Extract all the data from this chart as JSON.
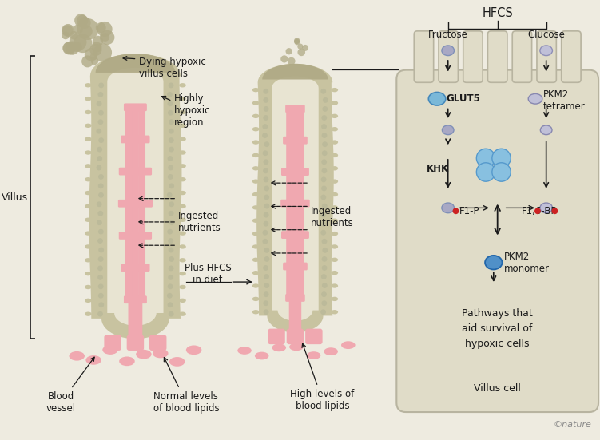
{
  "bg_color": "#eeebe0",
  "villus_outer_color": "#c8c3a0",
  "villus_inner_color": "#e8e4d2",
  "villus_edge_color": "#b8b398",
  "blood_color": "#f0a8b0",
  "hypoxic_color": "#b0aa86",
  "hypoxic_dark": "#989478",
  "cell_bg": "#e0dcc8",
  "cell_edge": "#b8b4a0",
  "arrow_color": "#1a1a1a",
  "text_color": "#1a1a1a",
  "blue_glut5": "#7ab8d8",
  "blue_pkm2": "#5090c8",
  "blue_tetramer": "#88c0e0",
  "gray_circle": "#a8a8c4",
  "gray_light": "#c0c0d8",
  "red_dot": "#cc2222",
  "nature_color": "#888888",
  "labels": {
    "fructose": "Fructose",
    "glucose": "Glucose",
    "hfcs": "HFCS",
    "glut5": "GLUT5",
    "pkm2_tetramer": "PKM2\ntetramer",
    "khk": "KHK",
    "f1p": "F1-P",
    "f16bp": "F1,6-BP",
    "pkm2_monomer": "PKM2\nmonomer",
    "pathways": "Pathways that\naid survival of\nhypoxic cells",
    "villus_cell": "Villus cell",
    "villus": "Villus",
    "blood_vessel": "Blood\nvessel",
    "normal_lipids": "Normal levels\nof blood lipids",
    "high_lipids": "High levels of\nblood lipids",
    "dying_cells": "Dying hypoxic\nvillus cells",
    "hypoxic_region": "Highly\nhypoxic\nregion",
    "ingested1": "Ingested\nnutrients",
    "ingested2": "Ingested\nnutrients",
    "plus_hfcs": "Plus HFCS\nin diet",
    "nature": "©nature"
  }
}
